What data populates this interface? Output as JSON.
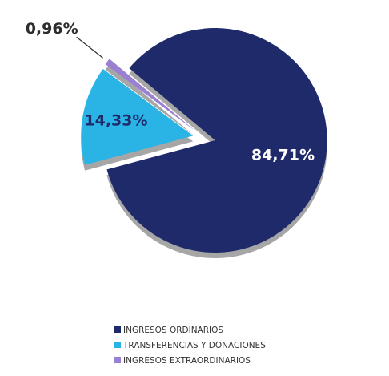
{
  "chart_data": {
    "type": "pie",
    "categories": [
      "INGRESOS ORDINARIOS",
      "TRANSFERENCIAS Y DONACIONES",
      "INGRESOS EXTRAORDINARIOS"
    ],
    "values": [
      84.71,
      14.33,
      0.96
    ],
    "value_labels": [
      "84,71%",
      "14,33%",
      "0,96%"
    ],
    "colors": [
      "#1f2a6b",
      "#2ab4e6",
      "#9a80d2"
    ],
    "legend": "bottom"
  }
}
